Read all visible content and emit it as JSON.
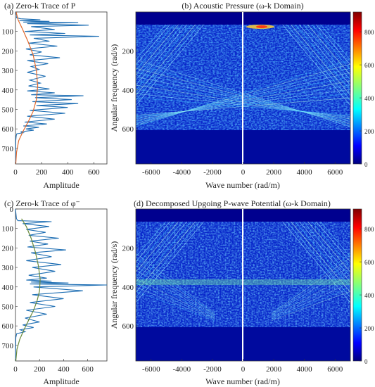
{
  "chart_data": [
    {
      "id": "a",
      "type": "line",
      "title": "(a) Zero-k Trace of P",
      "xlabel": "Amplitude",
      "ylabel": "",
      "xlim": [
        0,
        700
      ],
      "ylim": [
        0,
        780
      ],
      "y_inverted": true,
      "xticks": [
        0,
        200,
        400,
        600
      ],
      "yticks": [
        0,
        100,
        200,
        300,
        400,
        500,
        600,
        700
      ],
      "series": [
        {
          "color": "#1f6fb4",
          "x": [
            0,
            10,
            8,
            40,
            190,
            30,
            260,
            60,
            480,
            90,
            560,
            120,
            300,
            70,
            380,
            110,
            640,
            140,
            260,
            100,
            320,
            80,
            200,
            110,
            340,
            90,
            250,
            120,
            180,
            90,
            230,
            110,
            190,
            100,
            260,
            90,
            300,
            120,
            520,
            150,
            430,
            130,
            480,
            160,
            400,
            110,
            380,
            90,
            300,
            70,
            240,
            60,
            180,
            80,
            140,
            40,
            60,
            10,
            6,
            2,
            0
          ],
          "y": [
            0,
            20,
            30,
            35,
            40,
            45,
            48,
            52,
            55,
            60,
            68,
            75,
            90,
            100,
            110,
            118,
            125,
            135,
            150,
            160,
            175,
            190,
            205,
            220,
            235,
            250,
            265,
            280,
            295,
            310,
            330,
            350,
            365,
            380,
            395,
            405,
            415,
            425,
            430,
            440,
            450,
            460,
            470,
            480,
            490,
            505,
            520,
            535,
            550,
            565,
            575,
            585,
            592,
            600,
            607,
            615,
            620,
            625,
            635,
            660,
            780
          ]
        },
        {
          "color": "#e0682c",
          "x": [
            5,
            20,
            55,
            95,
            135,
            160,
            170,
            160,
            135,
            100,
            60,
            25,
            8,
            2
          ],
          "y": [
            0,
            40,
            90,
            150,
            220,
            300,
            380,
            450,
            510,
            560,
            610,
            660,
            720,
            780
          ]
        }
      ]
    },
    {
      "id": "b",
      "type": "heatmap",
      "title": "(b) Acoustic Pressure (ω-k Domain)",
      "xlabel": "Wave number (rad/m)",
      "ylabel": "Angular frequency (rad/s)",
      "xlim": [
        -7000,
        7000
      ],
      "ylim": [
        0,
        780
      ],
      "y_inverted": true,
      "xticks": [
        -6000,
        -4000,
        -2000,
        0,
        2000,
        4000,
        6000
      ],
      "yticks": [
        200,
        400,
        600
      ],
      "colorbar": {
        "min": 0,
        "max": 920,
        "ticks": [
          0,
          200,
          400,
          600,
          800
        ],
        "colormap": "jet"
      }
    },
    {
      "id": "c",
      "type": "line",
      "title": "(c) Zero-k Trace of φ⁻",
      "xlabel": "Amplitude",
      "ylabel": "",
      "xlim": [
        0,
        760
      ],
      "ylim": [
        0,
        780
      ],
      "y_inverted": true,
      "xticks": [
        0,
        200,
        400,
        600
      ],
      "yticks": [
        0,
        100,
        200,
        300,
        400,
        500,
        600,
        700
      ],
      "series": [
        {
          "color": "#1f6fb4",
          "x": [
            0,
            8,
            20,
            300,
            60,
            280,
            90,
            250,
            110,
            360,
            120,
            270,
            100,
            420,
            130,
            300,
            90,
            380,
            140,
            330,
            110,
            260,
            90,
            300,
            130,
            440,
            120,
            760,
            150,
            560,
            140,
            400,
            120,
            330,
            90,
            260,
            80,
            200,
            60,
            150,
            40,
            80,
            10,
            3,
            0
          ],
          "y": [
            0,
            50,
            60,
            65,
            75,
            90,
            105,
            120,
            135,
            150,
            165,
            180,
            195,
            210,
            225,
            245,
            265,
            285,
            300,
            320,
            340,
            355,
            365,
            370,
            375,
            380,
            385,
            390,
            400,
            420,
            440,
            460,
            480,
            500,
            520,
            540,
            560,
            580,
            595,
            608,
            620,
            630,
            640,
            660,
            780
          ]
        },
        {
          "color": "#6a8a3c",
          "x": [
            50,
            90,
            130,
            165,
            190,
            205,
            200,
            180,
            150,
            110,
            70,
            35,
            12,
            3
          ],
          "y": [
            50,
            90,
            150,
            220,
            290,
            360,
            420,
            470,
            520,
            570,
            620,
            670,
            720,
            780
          ]
        }
      ]
    },
    {
      "id": "d",
      "type": "heatmap",
      "title": "(d) Decomposed Upgoing P-wave Potential (ω-k Domain)",
      "xlabel": "Wave number (rad/m)",
      "ylabel": "Angular frequency (rad/s)",
      "xlim": [
        -7000,
        7000
      ],
      "ylim": [
        0,
        780
      ],
      "y_inverted": true,
      "xticks": [
        -6000,
        -4000,
        -2000,
        0,
        2000,
        4000,
        6000
      ],
      "yticks": [
        200,
        400,
        600
      ],
      "colorbar": {
        "min": 0,
        "max": 920,
        "ticks": [
          0,
          200,
          400,
          600,
          800
        ],
        "colormap": "jet"
      }
    }
  ]
}
